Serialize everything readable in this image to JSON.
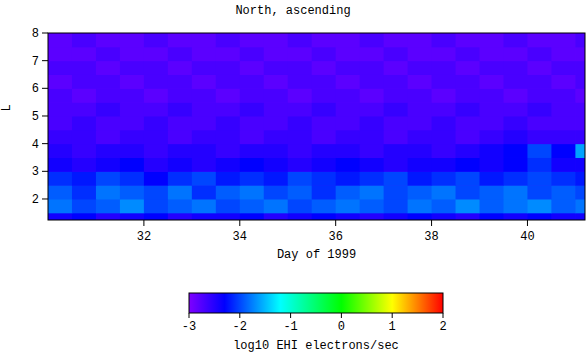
{
  "chart_data": {
    "type": "heatmap",
    "title": "North, ascending",
    "x_label": "Day of 1999",
    "y_label": "L",
    "xlim": [
      30,
      41.2
    ],
    "ylim": [
      1.24,
      8
    ],
    "xticks": [
      32,
      34,
      36,
      38,
      40
    ],
    "yticks": [
      2,
      3,
      4,
      5,
      6,
      7,
      8
    ],
    "x_bins": [
      30,
      30.5,
      31,
      31.5,
      32,
      32.5,
      33,
      33.5,
      34,
      34.5,
      35,
      35.5,
      36,
      36.5,
      37,
      37.5,
      38,
      38.5,
      39,
      39.5,
      40,
      40.5,
      41,
      41.2
    ],
    "y_bins": [
      1.24,
      1.5,
      2,
      2.5,
      3,
      3.5,
      4,
      4.5,
      5,
      5.5,
      6,
      6.5,
      7,
      7.5,
      8
    ],
    "cells": [
      [
        -2.4,
        -2.3,
        -2.5,
        -2.4,
        -2.3,
        -2.5,
        -2.4,
        -2.4,
        -2.3,
        -2.5,
        -2.4,
        -2.3,
        -2.4,
        -2.5,
        -2.4,
        -2.3,
        -2.4,
        -2.5,
        -2.3,
        -2.4,
        -2.3,
        -2.4,
        -2.4
      ],
      [
        -1.8,
        -2.0,
        -1.9,
        -1.7,
        -2.0,
        -1.9,
        -1.8,
        -2.0,
        -1.9,
        -1.8,
        -2.0,
        -1.9,
        -1.8,
        -1.9,
        -2.0,
        -1.8,
        -1.9,
        -1.7,
        -1.9,
        -1.8,
        -1.7,
        -1.9,
        -1.8
      ],
      [
        -1.9,
        -2.1,
        -1.8,
        -1.9,
        -2.0,
        -1.8,
        -2.1,
        -1.9,
        -1.8,
        -2.0,
        -1.9,
        -2.1,
        -1.9,
        -1.8,
        -2.0,
        -1.9,
        -1.8,
        -2.0,
        -1.9,
        -1.8,
        -2.0,
        -1.9,
        -2.0
      ],
      [
        -2.1,
        -2.2,
        -2.0,
        -2.1,
        -2.3,
        -2.1,
        -2.0,
        -2.2,
        -2.1,
        -2.2,
        -2.0,
        -2.1,
        -2.2,
        -2.1,
        -2.0,
        -2.2,
        -2.1,
        -2.0,
        -2.2,
        -2.1,
        -2.0,
        -2.1,
        -2.2
      ],
      [
        -2.4,
        -2.5,
        -2.4,
        -2.3,
        -2.5,
        -2.4,
        -2.5,
        -2.4,
        -2.3,
        -2.4,
        -2.5,
        -2.4,
        -2.3,
        -2.4,
        -2.5,
        -2.4,
        -2.4,
        -2.3,
        -2.4,
        -2.3,
        -2.1,
        -2.4,
        -2.4
      ],
      [
        -2.5,
        -2.6,
        -2.5,
        -2.5,
        -2.6,
        -2.5,
        -2.5,
        -2.6,
        -2.5,
        -2.5,
        -2.6,
        -2.5,
        -2.5,
        -2.6,
        -2.5,
        -2.5,
        -2.6,
        -2.5,
        -2.4,
        -2.3,
        -2.0,
        -2.3,
        -1.6
      ],
      [
        -2.6,
        -2.6,
        -2.7,
        -2.6,
        -2.6,
        -2.7,
        -2.6,
        -2.6,
        -2.7,
        -2.6,
        -2.6,
        -2.7,
        -2.6,
        -2.6,
        -2.7,
        -2.6,
        -2.6,
        -2.7,
        -2.6,
        -2.5,
        -2.6,
        -2.6,
        -2.6
      ],
      [
        -2.7,
        -2.6,
        -2.7,
        -2.7,
        -2.6,
        -2.7,
        -2.7,
        -2.6,
        -2.7,
        -2.7,
        -2.6,
        -2.7,
        -2.7,
        -2.6,
        -2.7,
        -2.7,
        -2.6,
        -2.7,
        -2.7,
        -2.6,
        -2.7,
        -2.7,
        -2.7
      ],
      [
        -2.7,
        -2.7,
        -2.6,
        -2.7,
        -2.7,
        -2.6,
        -2.7,
        -2.7,
        -2.6,
        -2.7,
        -2.7,
        -2.6,
        -2.7,
        -2.7,
        -2.6,
        -2.7,
        -2.7,
        -2.6,
        -2.7,
        -2.7,
        -2.6,
        -2.7,
        -2.7
      ],
      [
        -2.7,
        -2.8,
        -2.7,
        -2.7,
        -2.8,
        -2.7,
        -2.7,
        -2.8,
        -2.7,
        -2.7,
        -2.8,
        -2.7,
        -2.7,
        -2.8,
        -2.7,
        -2.7,
        -2.8,
        -2.7,
        -2.7,
        -2.8,
        -2.7,
        -2.7,
        -2.8
      ],
      [
        -2.8,
        -2.7,
        -2.7,
        -2.8,
        -2.7,
        -2.7,
        -2.8,
        -2.7,
        -2.7,
        -2.8,
        -2.7,
        -2.7,
        -2.8,
        -2.7,
        -2.7,
        -2.8,
        -2.7,
        -2.7,
        -2.8,
        -2.7,
        -2.7,
        -2.8,
        -2.7
      ],
      [
        -2.7,
        -2.7,
        -2.8,
        -2.7,
        -2.7,
        -2.8,
        -2.7,
        -2.7,
        -2.8,
        -2.7,
        -2.7,
        -2.8,
        -2.7,
        -2.7,
        -2.8,
        -2.7,
        -2.7,
        -2.8,
        -2.7,
        -2.7,
        -2.8,
        -2.7,
        -2.7
      ],
      [
        -2.8,
        -2.8,
        -2.7,
        -2.8,
        -2.8,
        -2.7,
        -2.8,
        -2.8,
        -2.7,
        -2.8,
        -2.8,
        -2.7,
        -2.8,
        -2.8,
        -2.7,
        -2.8,
        -2.8,
        -2.7,
        -2.8,
        -2.8,
        -2.7,
        -2.8,
        -2.8
      ],
      [
        -2.8,
        -2.7,
        -2.8,
        -2.8,
        -2.7,
        -2.8,
        -2.8,
        -2.7,
        -2.8,
        -2.8,
        -2.7,
        -2.8,
        -2.8,
        -2.7,
        -2.8,
        -2.8,
        -2.7,
        -2.8,
        -2.8,
        -2.7,
        -2.8,
        -2.8,
        -2.7
      ]
    ],
    "colorbar_label": "log10 EHI electrons/sec",
    "colorbar_range": [
      -3,
      2
    ],
    "colorbar_ticks": [
      -3,
      -2,
      -1,
      0,
      1,
      2
    ]
  }
}
